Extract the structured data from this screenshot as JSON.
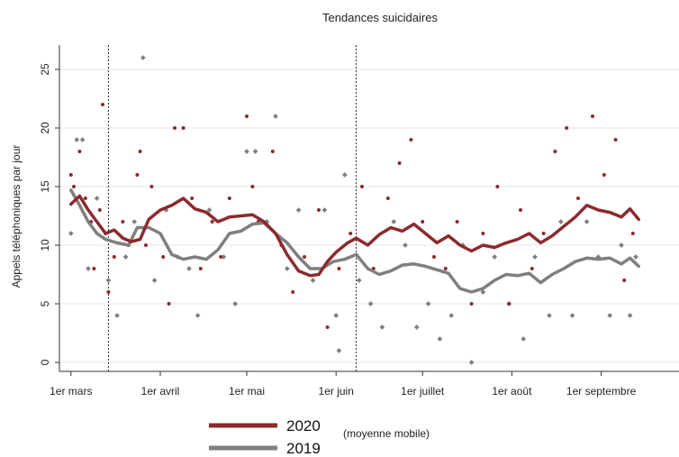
{
  "chart_data": {
    "type": "line",
    "title": "Tendances suicidaires",
    "ylabel": "Appels téléphoniques par jour",
    "xlabel": "",
    "ylim": [
      0,
      27
    ],
    "yticks": [
      0,
      5,
      10,
      15,
      20,
      25
    ],
    "xlim": [
      "2020-02-26",
      "2020-09-28"
    ],
    "xticks": [
      {
        "date": "2020-03-01",
        "label": "1er mars"
      },
      {
        "date": "2020-04-01",
        "label": "1er avril"
      },
      {
        "date": "2020-05-01",
        "label": "1er mai"
      },
      {
        "date": "2020-06-01",
        "label": "1er juin"
      },
      {
        "date": "2020-07-01",
        "label": "1er juillet"
      },
      {
        "date": "2020-08-01",
        "label": "1er août"
      },
      {
        "date": "2020-09-01",
        "label": "1er septembre"
      }
    ],
    "vlines": [
      "2020-03-14",
      "2020-06-08"
    ],
    "grid": true,
    "legend_position": "bottom",
    "legend_note": "(moyenne mobile)",
    "series": [
      {
        "name": "2020",
        "color": "#8b2a2e",
        "smoothed": [
          [
            "2020-03-01",
            13.5
          ],
          [
            "2020-03-04",
            14.2
          ],
          [
            "2020-03-07",
            13.0
          ],
          [
            "2020-03-10",
            12.0
          ],
          [
            "2020-03-13",
            11.0
          ],
          [
            "2020-03-16",
            11.3
          ],
          [
            "2020-03-19",
            10.6
          ],
          [
            "2020-03-22",
            10.3
          ],
          [
            "2020-03-25",
            10.5
          ],
          [
            "2020-03-28",
            12.2
          ],
          [
            "2020-04-01",
            13.0
          ],
          [
            "2020-04-05",
            13.4
          ],
          [
            "2020-04-09",
            14.0
          ],
          [
            "2020-04-13",
            13.1
          ],
          [
            "2020-04-17",
            12.8
          ],
          [
            "2020-04-21",
            12.0
          ],
          [
            "2020-04-25",
            12.4
          ],
          [
            "2020-04-29",
            12.5
          ],
          [
            "2020-05-03",
            12.6
          ],
          [
            "2020-05-07",
            12.0
          ],
          [
            "2020-05-11",
            11.0
          ],
          [
            "2020-05-15",
            9.2
          ],
          [
            "2020-05-19",
            7.8
          ],
          [
            "2020-05-23",
            7.4
          ],
          [
            "2020-05-26",
            7.5
          ],
          [
            "2020-05-29",
            8.6
          ],
          [
            "2020-06-01",
            9.4
          ],
          [
            "2020-06-05",
            10.2
          ],
          [
            "2020-06-08",
            10.6
          ],
          [
            "2020-06-12",
            10.0
          ],
          [
            "2020-06-16",
            10.9
          ],
          [
            "2020-06-20",
            11.5
          ],
          [
            "2020-06-24",
            11.2
          ],
          [
            "2020-06-28",
            11.8
          ],
          [
            "2020-07-02",
            11.0
          ],
          [
            "2020-07-06",
            10.2
          ],
          [
            "2020-07-10",
            10.8
          ],
          [
            "2020-07-14",
            10.0
          ],
          [
            "2020-07-18",
            9.5
          ],
          [
            "2020-07-22",
            10.0
          ],
          [
            "2020-07-26",
            9.8
          ],
          [
            "2020-07-30",
            10.2
          ],
          [
            "2020-08-03",
            10.5
          ],
          [
            "2020-08-07",
            11.0
          ],
          [
            "2020-08-11",
            10.2
          ],
          [
            "2020-08-15",
            10.8
          ],
          [
            "2020-08-19",
            11.6
          ],
          [
            "2020-08-23",
            12.4
          ],
          [
            "2020-08-27",
            13.4
          ],
          [
            "2020-08-31",
            13.0
          ],
          [
            "2020-09-04",
            12.8
          ],
          [
            "2020-09-08",
            12.4
          ],
          [
            "2020-09-11",
            13.1
          ],
          [
            "2020-09-14",
            12.2
          ]
        ],
        "points": [
          [
            "2020-03-01",
            16
          ],
          [
            "2020-03-02",
            15
          ],
          [
            "2020-03-04",
            18
          ],
          [
            "2020-03-06",
            14
          ],
          [
            "2020-03-08",
            12
          ],
          [
            "2020-03-09",
            8
          ],
          [
            "2020-03-11",
            13
          ],
          [
            "2020-03-12",
            22
          ],
          [
            "2020-03-13",
            11
          ],
          [
            "2020-03-14",
            6
          ],
          [
            "2020-03-16",
            9
          ],
          [
            "2020-03-19",
            12
          ],
          [
            "2020-03-21",
            10
          ],
          [
            "2020-03-24",
            16
          ],
          [
            "2020-03-25",
            18
          ],
          [
            "2020-03-27",
            10
          ],
          [
            "2020-03-29",
            15
          ],
          [
            "2020-04-02",
            9
          ],
          [
            "2020-04-04",
            5
          ],
          [
            "2020-04-06",
            20
          ],
          [
            "2020-04-09",
            20
          ],
          [
            "2020-04-12",
            14
          ],
          [
            "2020-04-15",
            8
          ],
          [
            "2020-04-19",
            12
          ],
          [
            "2020-04-22",
            9
          ],
          [
            "2020-04-25",
            14
          ],
          [
            "2020-05-01",
            21
          ],
          [
            "2020-05-03",
            15
          ],
          [
            "2020-05-05",
            12
          ],
          [
            "2020-05-10",
            18
          ],
          [
            "2020-05-13",
            10
          ],
          [
            "2020-05-17",
            6
          ],
          [
            "2020-05-21",
            9
          ],
          [
            "2020-05-26",
            13
          ],
          [
            "2020-05-29",
            3
          ],
          [
            "2020-06-02",
            8
          ],
          [
            "2020-06-06",
            11
          ],
          [
            "2020-06-10",
            15
          ],
          [
            "2020-06-14",
            8
          ],
          [
            "2020-06-19",
            14
          ],
          [
            "2020-06-23",
            17
          ],
          [
            "2020-06-27",
            19
          ],
          [
            "2020-07-01",
            12
          ],
          [
            "2020-07-05",
            9
          ],
          [
            "2020-07-09",
            8
          ],
          [
            "2020-07-13",
            12
          ],
          [
            "2020-07-18",
            5
          ],
          [
            "2020-07-22",
            11
          ],
          [
            "2020-07-27",
            15
          ],
          [
            "2020-07-31",
            5
          ],
          [
            "2020-08-04",
            13
          ],
          [
            "2020-08-08",
            8
          ],
          [
            "2020-08-12",
            11
          ],
          [
            "2020-08-16",
            18
          ],
          [
            "2020-08-20",
            20
          ],
          [
            "2020-08-24",
            14
          ],
          [
            "2020-08-29",
            21
          ],
          [
            "2020-09-02",
            16
          ],
          [
            "2020-09-06",
            19
          ],
          [
            "2020-09-09",
            7
          ],
          [
            "2020-09-12",
            11
          ]
        ]
      },
      {
        "name": "2019",
        "color": "#7f7f7f",
        "smoothed": [
          [
            "2020-03-01",
            14.7
          ],
          [
            "2020-03-04",
            13.4
          ],
          [
            "2020-03-07",
            12.0
          ],
          [
            "2020-03-10",
            11.0
          ],
          [
            "2020-03-13",
            10.5
          ],
          [
            "2020-03-17",
            10.2
          ],
          [
            "2020-03-21",
            10.0
          ],
          [
            "2020-03-24",
            11.5
          ],
          [
            "2020-03-28",
            11.5
          ],
          [
            "2020-04-01",
            11.0
          ],
          [
            "2020-04-05",
            9.2
          ],
          [
            "2020-04-09",
            8.8
          ],
          [
            "2020-04-13",
            9.0
          ],
          [
            "2020-04-17",
            8.8
          ],
          [
            "2020-04-21",
            9.6
          ],
          [
            "2020-04-25",
            11.0
          ],
          [
            "2020-04-29",
            11.2
          ],
          [
            "2020-05-03",
            11.8
          ],
          [
            "2020-05-07",
            11.9
          ],
          [
            "2020-05-11",
            11.0
          ],
          [
            "2020-05-15",
            10.2
          ],
          [
            "2020-05-19",
            9.0
          ],
          [
            "2020-05-23",
            8.0
          ],
          [
            "2020-05-27",
            8.0
          ],
          [
            "2020-05-31",
            8.6
          ],
          [
            "2020-06-04",
            8.8
          ],
          [
            "2020-06-08",
            9.2
          ],
          [
            "2020-06-12",
            8.0
          ],
          [
            "2020-06-16",
            7.5
          ],
          [
            "2020-06-20",
            7.8
          ],
          [
            "2020-06-24",
            8.3
          ],
          [
            "2020-06-28",
            8.4
          ],
          [
            "2020-07-02",
            8.2
          ],
          [
            "2020-07-06",
            7.9
          ],
          [
            "2020-07-10",
            7.6
          ],
          [
            "2020-07-14",
            6.3
          ],
          [
            "2020-07-18",
            6.0
          ],
          [
            "2020-07-22",
            6.3
          ],
          [
            "2020-07-26",
            7.0
          ],
          [
            "2020-07-30",
            7.5
          ],
          [
            "2020-08-03",
            7.4
          ],
          [
            "2020-08-07",
            7.6
          ],
          [
            "2020-08-11",
            6.8
          ],
          [
            "2020-08-15",
            7.5
          ],
          [
            "2020-08-19",
            8.0
          ],
          [
            "2020-08-23",
            8.6
          ],
          [
            "2020-08-27",
            8.9
          ],
          [
            "2020-08-31",
            8.8
          ],
          [
            "2020-09-04",
            8.9
          ],
          [
            "2020-09-08",
            8.4
          ],
          [
            "2020-09-11",
            8.9
          ],
          [
            "2020-09-14",
            8.2
          ]
        ],
        "points": [
          [
            "2020-03-01",
            11
          ],
          [
            "2020-03-03",
            19
          ],
          [
            "2020-03-05",
            19
          ],
          [
            "2020-03-07",
            8
          ],
          [
            "2020-03-10",
            14
          ],
          [
            "2020-03-14",
            7
          ],
          [
            "2020-03-17",
            4
          ],
          [
            "2020-03-20",
            9
          ],
          [
            "2020-03-23",
            12
          ],
          [
            "2020-03-26",
            26
          ],
          [
            "2020-03-30",
            7
          ],
          [
            "2020-04-03",
            13
          ],
          [
            "2020-04-07",
            9
          ],
          [
            "2020-04-11",
            8
          ],
          [
            "2020-04-14",
            4
          ],
          [
            "2020-04-18",
            13
          ],
          [
            "2020-04-23",
            9
          ],
          [
            "2020-04-27",
            5
          ],
          [
            "2020-05-01",
            18
          ],
          [
            "2020-05-04",
            18
          ],
          [
            "2020-05-08",
            12
          ],
          [
            "2020-05-11",
            21
          ],
          [
            "2020-05-15",
            8
          ],
          [
            "2020-05-19",
            13
          ],
          [
            "2020-05-24",
            7
          ],
          [
            "2020-05-28",
            13
          ],
          [
            "2020-06-01",
            4
          ],
          [
            "2020-06-02",
            1
          ],
          [
            "2020-06-04",
            16
          ],
          [
            "2020-06-09",
            7
          ],
          [
            "2020-06-13",
            5
          ],
          [
            "2020-06-17",
            3
          ],
          [
            "2020-06-21",
            12
          ],
          [
            "2020-06-25",
            10
          ],
          [
            "2020-06-29",
            3
          ],
          [
            "2020-07-03",
            5
          ],
          [
            "2020-07-07",
            2
          ],
          [
            "2020-07-11",
            4
          ],
          [
            "2020-07-15",
            10
          ],
          [
            "2020-07-18",
            0
          ],
          [
            "2020-07-22",
            6
          ],
          [
            "2020-07-26",
            9
          ],
          [
            "2020-07-31",
            5
          ],
          [
            "2020-08-05",
            2
          ],
          [
            "2020-08-09",
            9
          ],
          [
            "2020-08-14",
            4
          ],
          [
            "2020-08-18",
            12
          ],
          [
            "2020-08-22",
            4
          ],
          [
            "2020-08-27",
            12
          ],
          [
            "2020-08-31",
            9
          ],
          [
            "2020-09-04",
            4
          ],
          [
            "2020-09-08",
            10
          ],
          [
            "2020-09-11",
            4
          ],
          [
            "2020-09-13",
            9
          ]
        ]
      }
    ]
  }
}
